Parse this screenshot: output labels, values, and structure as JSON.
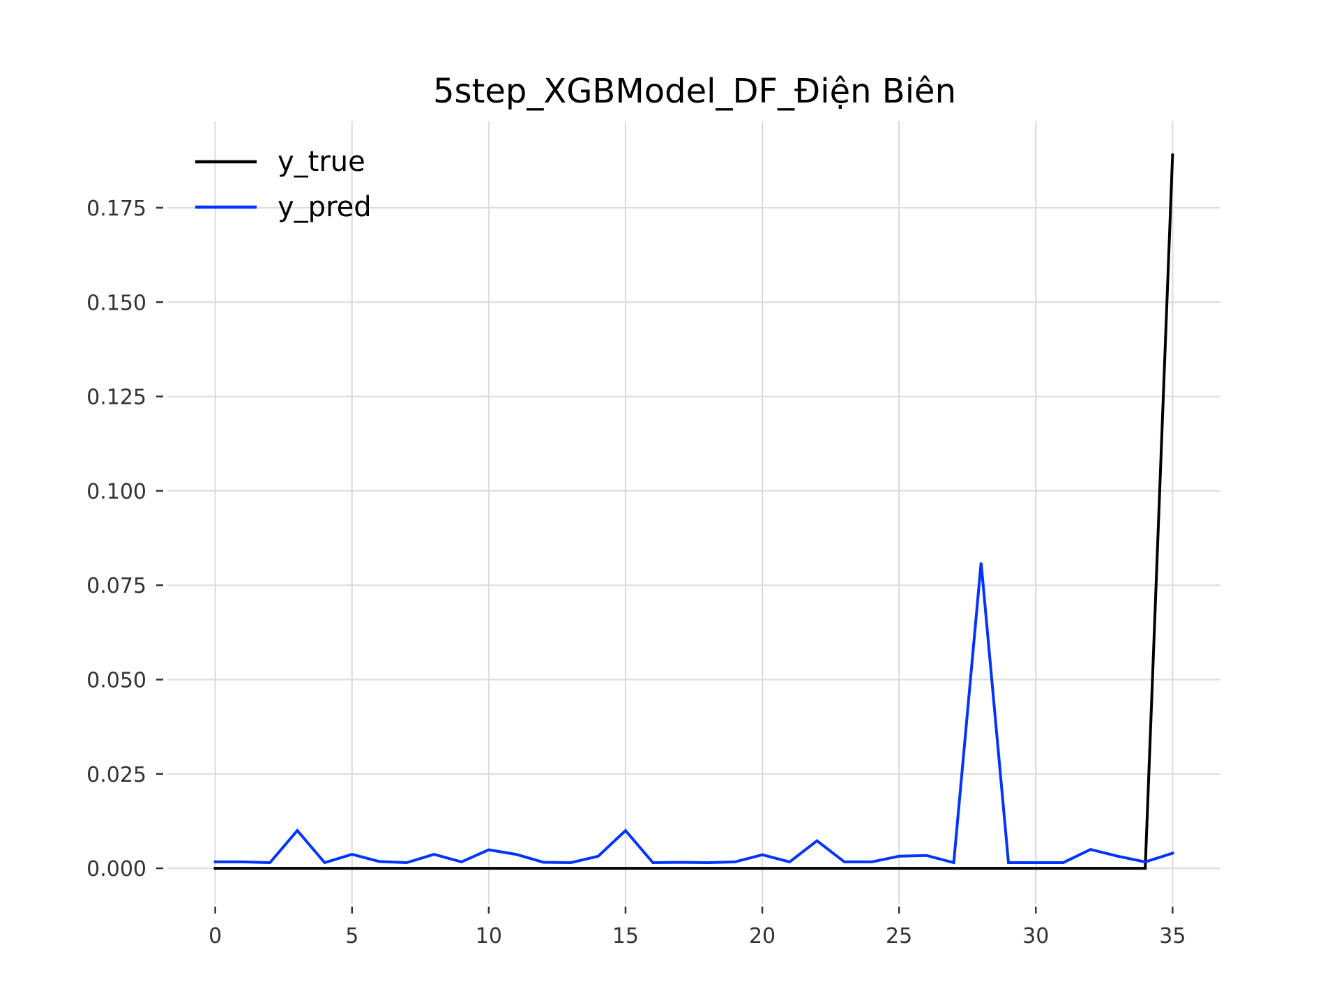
{
  "chart_data": {
    "type": "line",
    "title": "5step_XGBModel_DF_Điện Biên",
    "xlabel": "",
    "ylabel": "",
    "xlim": [
      -1.75,
      36.75
    ],
    "ylim": [
      -0.0094,
      0.1979
    ],
    "xticks": [
      0,
      5,
      10,
      15,
      20,
      25,
      30,
      35
    ],
    "yticks": [
      0.0,
      0.025,
      0.05,
      0.075,
      0.1,
      0.125,
      0.15,
      0.175
    ],
    "ytick_labels": [
      "0.000",
      "0.025",
      "0.050",
      "0.075",
      "0.100",
      "0.125",
      "0.150",
      "0.175"
    ],
    "grid": true,
    "legend_position": "top-left",
    "x": [
      0,
      1,
      2,
      3,
      4,
      5,
      6,
      7,
      8,
      9,
      10,
      11,
      12,
      13,
      14,
      15,
      16,
      17,
      18,
      19,
      20,
      21,
      22,
      23,
      24,
      25,
      26,
      27,
      28,
      29,
      30,
      31,
      32,
      33,
      34,
      35
    ],
    "series": [
      {
        "name": "y_true",
        "color": "#000000",
        "values": [
          0,
          0,
          0,
          0,
          0,
          0,
          0,
          0,
          0,
          0,
          0,
          0,
          0,
          0,
          0,
          0,
          0,
          0,
          0,
          0,
          0,
          0,
          0,
          0,
          0,
          0,
          0,
          0,
          0,
          0,
          0,
          0,
          0,
          0,
          0,
          0.189
        ]
      },
      {
        "name": "y_pred",
        "color": "#0033ff",
        "values": [
          0.0017,
          0.0017,
          0.0015,
          0.01,
          0.0015,
          0.0037,
          0.0018,
          0.0015,
          0.0037,
          0.0017,
          0.0049,
          0.0037,
          0.0016,
          0.0015,
          0.0032,
          0.01,
          0.0015,
          0.0016,
          0.0015,
          0.0017,
          0.0036,
          0.0017,
          0.0073,
          0.0017,
          0.0017,
          0.0032,
          0.0034,
          0.0015,
          0.081,
          0.0015,
          0.0015,
          0.0015,
          0.005,
          0.0032,
          0.0017,
          0.004
        ]
      }
    ]
  }
}
